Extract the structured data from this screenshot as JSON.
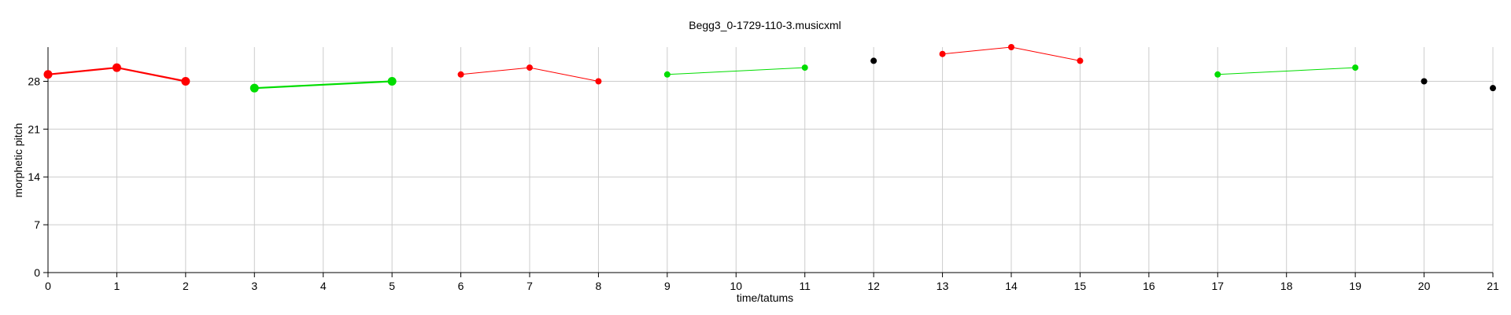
{
  "chart_data": {
    "type": "scatter",
    "title": "Begg3_0-1729-110-3.musicxml",
    "xlabel": "time/tatums",
    "ylabel": "morphetic pitch",
    "xlim": [
      0,
      21
    ],
    "ylim": [
      0,
      33
    ],
    "xticks": [
      0,
      1,
      2,
      3,
      4,
      5,
      6,
      7,
      8,
      9,
      10,
      11,
      12,
      13,
      14,
      15,
      16,
      17,
      18,
      19,
      20,
      21
    ],
    "yticks": [
      0,
      7,
      14,
      21,
      28
    ],
    "grid": true,
    "colors": {
      "red": "#ff0000",
      "green": "#00dd00",
      "black": "#000000",
      "grid": "#cccccc",
      "axis": "#000000"
    },
    "series": [
      {
        "color": "red",
        "weight": "heavy",
        "points": [
          [
            0,
            29
          ],
          [
            1,
            30
          ],
          [
            2,
            28
          ]
        ]
      },
      {
        "color": "green",
        "weight": "heavy",
        "points": [
          [
            3,
            27
          ],
          [
            5,
            28
          ]
        ]
      },
      {
        "color": "red",
        "weight": "light",
        "points": [
          [
            6,
            29
          ],
          [
            7,
            30
          ],
          [
            8,
            28
          ]
        ]
      },
      {
        "color": "green",
        "weight": "light",
        "points": [
          [
            9,
            29
          ],
          [
            11,
            30
          ]
        ]
      },
      {
        "color": "black",
        "weight": "light",
        "points": [
          [
            12,
            31
          ]
        ]
      },
      {
        "color": "red",
        "weight": "light",
        "points": [
          [
            13,
            32
          ],
          [
            14,
            33
          ],
          [
            15,
            31
          ]
        ]
      },
      {
        "color": "green",
        "weight": "light",
        "points": [
          [
            17,
            29
          ],
          [
            19,
            30
          ]
        ]
      },
      {
        "color": "black",
        "weight": "light",
        "points": [
          [
            20,
            28
          ]
        ]
      },
      {
        "color": "black",
        "weight": "light",
        "points": [
          [
            21,
            27
          ]
        ]
      }
    ]
  }
}
